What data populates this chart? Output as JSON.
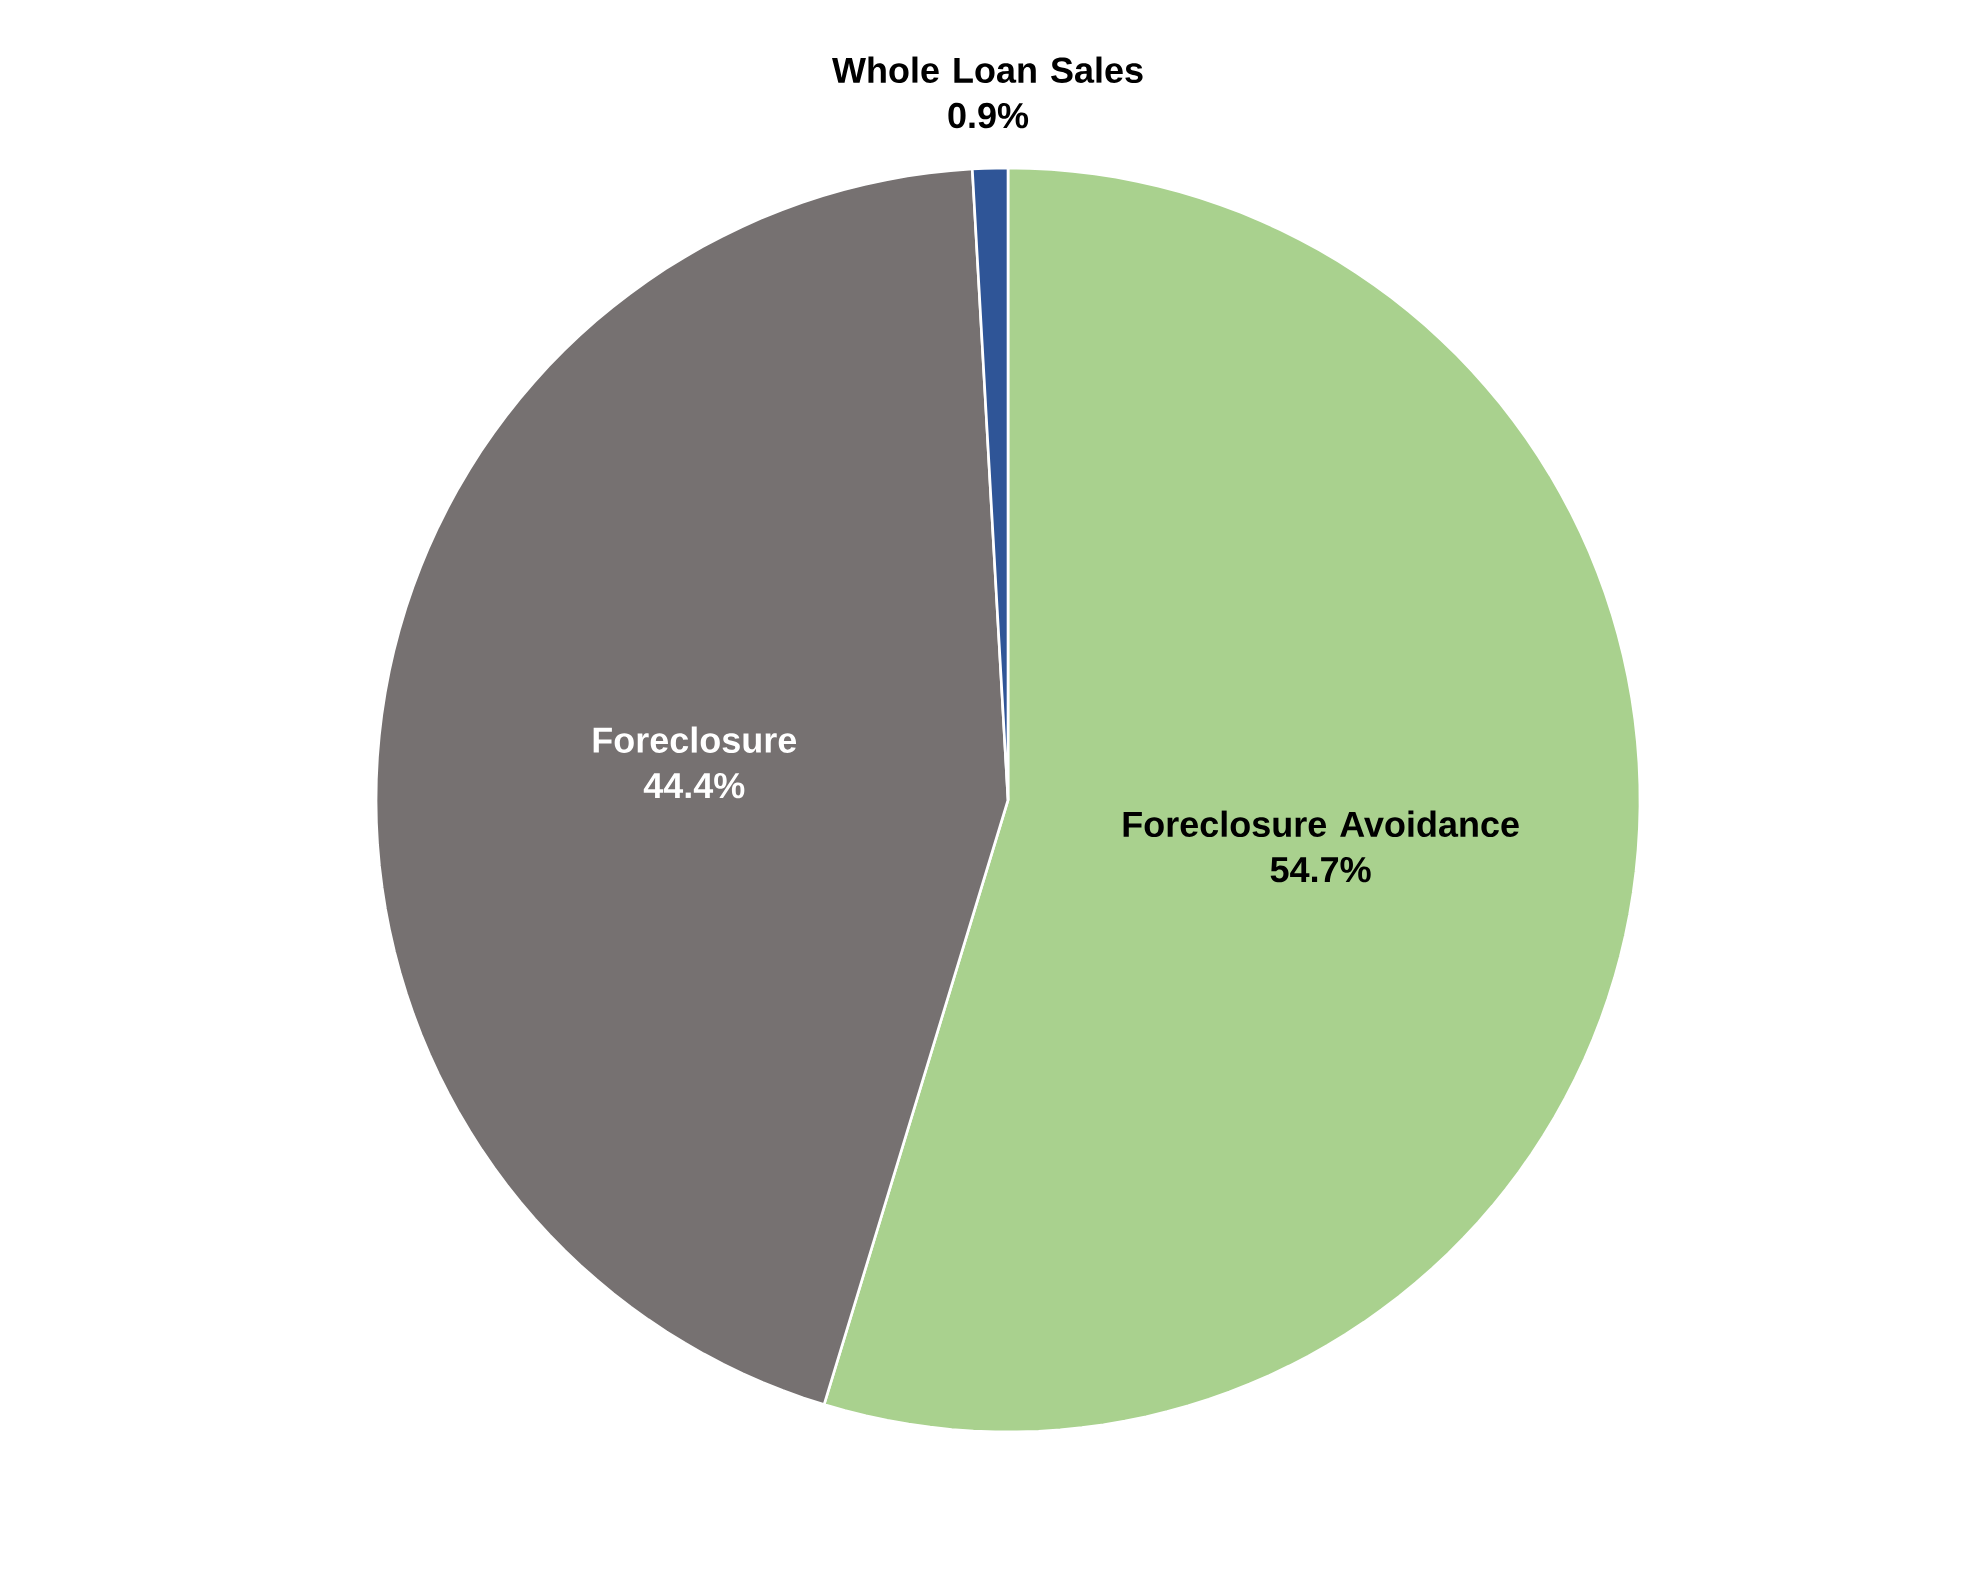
{
  "chart_data": {
    "type": "pie",
    "categories": [
      "Foreclosure Avoidance",
      "Foreclosure",
      "Whole Loan Sales"
    ],
    "values": [
      54.7,
      44.4,
      0.9
    ],
    "colors": [
      "#a9d18e",
      "#767171",
      "#2f5597"
    ],
    "value_labels": [
      "54.7%",
      "44.4%",
      "0.9%"
    ]
  }
}
